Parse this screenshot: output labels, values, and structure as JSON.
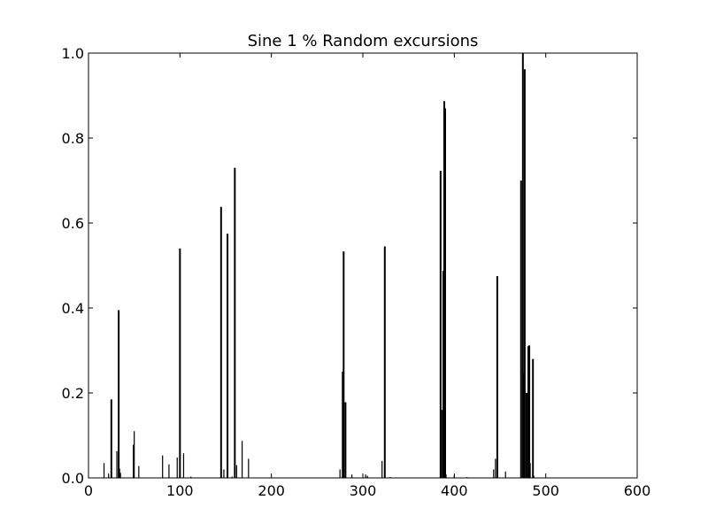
{
  "chart_data": {
    "type": "line",
    "title": "Sine 1 % Random excursions",
    "xlabel": "",
    "ylabel": "",
    "xlim": [
      0,
      600
    ],
    "ylim": [
      0,
      1.0
    ],
    "x_ticks": [
      "0",
      "100",
      "200",
      "300",
      "400",
      "500",
      "600"
    ],
    "y_ticks": [
      "0.0",
      "0.2",
      "0.4",
      "0.6",
      "0.8",
      "1.0"
    ],
    "grid": false,
    "series": [
      {
        "color": "#000000",
        "x": [
          17,
          22,
          25,
          31,
          33,
          34,
          35,
          49,
          50,
          55,
          81,
          88,
          97,
          100,
          104,
          112,
          145,
          148,
          152,
          157,
          160,
          162,
          168,
          175,
          275,
          278,
          279,
          281,
          288,
          303,
          305,
          321,
          324,
          330,
          385,
          386,
          388,
          389,
          390,
          391,
          400,
          414,
          443,
          445,
          447,
          456,
          473,
          475,
          476,
          477,
          479,
          481,
          482,
          483,
          486,
          487
        ],
        "y": [
          0.035,
          0.01,
          0.185,
          0.063,
          0.395,
          0.022,
          0.012,
          0.078,
          0.11,
          0.028,
          0.053,
          0.032,
          0.048,
          0.54,
          0.058,
          0.003,
          0.638,
          0.02,
          0.575,
          0.003,
          0.73,
          0.03,
          0.087,
          0.045,
          0.02,
          0.25,
          0.533,
          0.178,
          0.008,
          0.008,
          0.005,
          0.04,
          0.545,
          0.002,
          0.723,
          0.16,
          0.487,
          0.887,
          0.87,
          0.008,
          0.006,
          0.002,
          0.02,
          0.045,
          0.475,
          0.015,
          0.7,
          1.0,
          0.247,
          0.962,
          0.2,
          0.31,
          0.312,
          0.035,
          0.28,
          0.005
        ]
      }
    ]
  }
}
